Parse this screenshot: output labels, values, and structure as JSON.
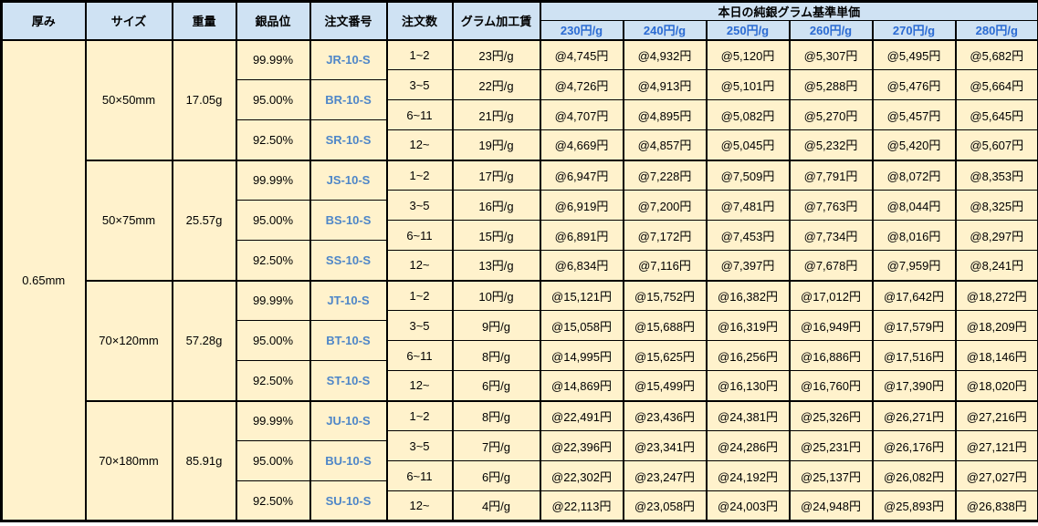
{
  "colors": {
    "header_bg": "#cfe2f3",
    "body_bg": "#fff2cc",
    "border": "#000000",
    "price_header_text": "#2b6bd3",
    "order_number_text": "#4e86c8"
  },
  "table": {
    "headers": {
      "thickness": "厚み",
      "size": "サイズ",
      "weight": "重量",
      "purity": "銀品位",
      "order_no": "注文番号",
      "order_qty": "注文数",
      "gram_fee": "グラム加工賃",
      "price_group": "本日の純銀グラム基準単価",
      "price_columns": [
        "230円/g",
        "240円/g",
        "250円/g",
        "260円/g",
        "270円/g",
        "280円/g"
      ]
    },
    "thickness_value": "0.65mm",
    "blocks": [
      {
        "size": "50×50mm",
        "weight": "17.05g",
        "purities": [
          {
            "purity": "99.99%",
            "order_no": "JR-10-S"
          },
          {
            "purity": "95.00%",
            "order_no": "BR-10-S"
          },
          {
            "purity": "92.50%",
            "order_no": "SR-10-S"
          }
        ],
        "rows": [
          {
            "qty": "1~2",
            "fee": "23円/g",
            "prices": [
              "@4,745円",
              "@4,932円",
              "@5,120円",
              "@5,307円",
              "@5,495円",
              "@5,682円"
            ]
          },
          {
            "qty": "3~5",
            "fee": "22円/g",
            "prices": [
              "@4,726円",
              "@4,913円",
              "@5,101円",
              "@5,288円",
              "@5,476円",
              "@5,664円"
            ]
          },
          {
            "qty": "6~11",
            "fee": "21円/g",
            "prices": [
              "@4,707円",
              "@4,895円",
              "@5,082円",
              "@5,270円",
              "@5,457円",
              "@5,645円"
            ]
          },
          {
            "qty": "12~",
            "fee": "19円/g",
            "prices": [
              "@4,669円",
              "@4,857円",
              "@5,045円",
              "@5,232円",
              "@5,420円",
              "@5,607円"
            ]
          }
        ]
      },
      {
        "size": "50×75mm",
        "weight": "25.57g",
        "purities": [
          {
            "purity": "99.99%",
            "order_no": "JS-10-S"
          },
          {
            "purity": "95.00%",
            "order_no": "BS-10-S"
          },
          {
            "purity": "92.50%",
            "order_no": "SS-10-S"
          }
        ],
        "rows": [
          {
            "qty": "1~2",
            "fee": "17円/g",
            "prices": [
              "@6,947円",
              "@7,228円",
              "@7,509円",
              "@7,791円",
              "@8,072円",
              "@8,353円"
            ]
          },
          {
            "qty": "3~5",
            "fee": "16円/g",
            "prices": [
              "@6,919円",
              "@7,200円",
              "@7,481円",
              "@7,763円",
              "@8,044円",
              "@8,325円"
            ]
          },
          {
            "qty": "6~11",
            "fee": "15円/g",
            "prices": [
              "@6,891円",
              "@7,172円",
              "@7,453円",
              "@7,734円",
              "@8,016円",
              "@8,297円"
            ]
          },
          {
            "qty": "12~",
            "fee": "13円/g",
            "prices": [
              "@6,834円",
              "@7,116円",
              "@7,397円",
              "@7,678円",
              "@7,959円",
              "@8,241円"
            ]
          }
        ]
      },
      {
        "size": "70×120mm",
        "weight": "57.28g",
        "purities": [
          {
            "purity": "99.99%",
            "order_no": "JT-10-S"
          },
          {
            "purity": "95.00%",
            "order_no": "BT-10-S"
          },
          {
            "purity": "92.50%",
            "order_no": "ST-10-S"
          }
        ],
        "rows": [
          {
            "qty": "1~2",
            "fee": "10円/g",
            "prices": [
              "@15,121円",
              "@15,752円",
              "@16,382円",
              "@17,012円",
              "@17,642円",
              "@18,272円"
            ]
          },
          {
            "qty": "3~5",
            "fee": "9円/g",
            "prices": [
              "@15,058円",
              "@15,688円",
              "@16,319円",
              "@16,949円",
              "@17,579円",
              "@18,209円"
            ]
          },
          {
            "qty": "6~11",
            "fee": "8円/g",
            "prices": [
              "@14,995円",
              "@15,625円",
              "@16,256円",
              "@16,886円",
              "@17,516円",
              "@18,146円"
            ]
          },
          {
            "qty": "12~",
            "fee": "6円/g",
            "prices": [
              "@14,869円",
              "@15,499円",
              "@16,130円",
              "@16,760円",
              "@17,390円",
              "@18,020円"
            ]
          }
        ]
      },
      {
        "size": "70×180mm",
        "weight": "85.91g",
        "purities": [
          {
            "purity": "99.99%",
            "order_no": "JU-10-S"
          },
          {
            "purity": "95.00%",
            "order_no": "BU-10-S"
          },
          {
            "purity": "92.50%",
            "order_no": "SU-10-S"
          }
        ],
        "rows": [
          {
            "qty": "1~2",
            "fee": "8円/g",
            "prices": [
              "@22,491円",
              "@23,436円",
              "@24,381円",
              "@25,326円",
              "@26,271円",
              "@27,216円"
            ]
          },
          {
            "qty": "3~5",
            "fee": "7円/g",
            "prices": [
              "@22,396円",
              "@23,341円",
              "@24,286円",
              "@25,231円",
              "@26,176円",
              "@27,121円"
            ]
          },
          {
            "qty": "6~11",
            "fee": "6円/g",
            "prices": [
              "@22,302円",
              "@23,247円",
              "@24,192円",
              "@25,137円",
              "@26,082円",
              "@27,027円"
            ]
          },
          {
            "qty": "12~",
            "fee": "4円/g",
            "prices": [
              "@22,113円",
              "@23,058円",
              "@24,003円",
              "@24,948円",
              "@25,893円",
              "@26,838円"
            ]
          }
        ]
      }
    ]
  }
}
